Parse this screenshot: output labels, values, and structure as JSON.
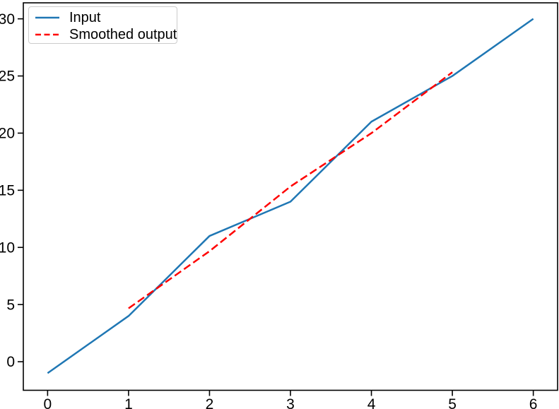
{
  "chart_data": {
    "type": "line",
    "title": "",
    "xlabel": "",
    "ylabel": "",
    "grid": false,
    "legend_position": "upper left",
    "xlim": [
      -0.3,
      6.3
    ],
    "ylim": [
      -2.5,
      31.4
    ],
    "x_ticks": [
      0,
      1,
      2,
      3,
      4,
      5,
      6
    ],
    "y_ticks": [
      0,
      5,
      10,
      15,
      20,
      25,
      30
    ],
    "axis_color": "#000000",
    "background_color": "#ffffff",
    "series": [
      {
        "name": "Input",
        "color": "#1f77b4",
        "style": "solid",
        "x": [
          0,
          1,
          2,
          3,
          4,
          5,
          6
        ],
        "y": [
          -1,
          4,
          11,
          14,
          21,
          25,
          30
        ]
      },
      {
        "name": "Smoothed output",
        "color": "#ff0000",
        "style": "dashed",
        "x": [
          1,
          2,
          3,
          4,
          5
        ],
        "y": [
          4.67,
          9.67,
          15.33,
          20,
          25.33
        ]
      }
    ]
  },
  "legend": {
    "items": [
      {
        "label": "Input"
      },
      {
        "label": "Smoothed output"
      }
    ]
  }
}
